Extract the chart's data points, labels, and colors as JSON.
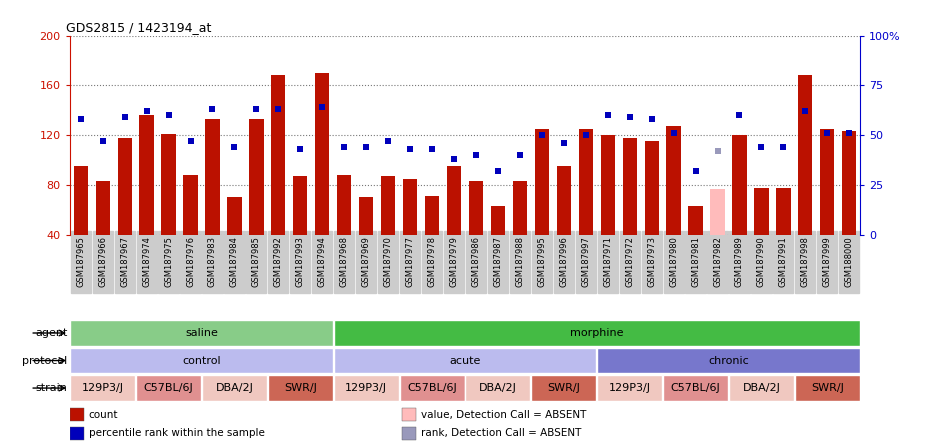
{
  "title": "GDS2815 / 1423194_at",
  "samples": [
    "GSM187965",
    "GSM187966",
    "GSM187967",
    "GSM187974",
    "GSM187975",
    "GSM187976",
    "GSM187983",
    "GSM187984",
    "GSM187985",
    "GSM187992",
    "GSM187993",
    "GSM187994",
    "GSM187968",
    "GSM187969",
    "GSM187970",
    "GSM187977",
    "GSM187978",
    "GSM187979",
    "GSM187986",
    "GSM187987",
    "GSM187988",
    "GSM187995",
    "GSM187996",
    "GSM187997",
    "GSM187971",
    "GSM187972",
    "GSM187973",
    "GSM187980",
    "GSM187981",
    "GSM187982",
    "GSM187989",
    "GSM187990",
    "GSM187991",
    "GSM187998",
    "GSM187999",
    "GSM188000"
  ],
  "bar_values": [
    95,
    83,
    118,
    136,
    121,
    88,
    133,
    70,
    133,
    168,
    87,
    170,
    88,
    70,
    87,
    85,
    71,
    95,
    83,
    63,
    83,
    125,
    95,
    125,
    120,
    118,
    115,
    127,
    63,
    77,
    120,
    78,
    78,
    168,
    125,
    123
  ],
  "bar_absent": [
    false,
    false,
    false,
    false,
    false,
    false,
    false,
    false,
    false,
    false,
    false,
    false,
    false,
    false,
    false,
    false,
    false,
    false,
    false,
    false,
    false,
    false,
    false,
    false,
    false,
    false,
    false,
    false,
    false,
    true,
    false,
    false,
    false,
    false,
    false,
    false
  ],
  "dot_values_pct": [
    58,
    47,
    59,
    62,
    60,
    47,
    63,
    44,
    63,
    63,
    43,
    64,
    44,
    44,
    47,
    43,
    43,
    38,
    40,
    32,
    40,
    50,
    46,
    50,
    60,
    59,
    58,
    51,
    32,
    42,
    60,
    44,
    44,
    62,
    51,
    51
  ],
  "dot_absent": [
    false,
    false,
    false,
    false,
    false,
    false,
    false,
    false,
    false,
    false,
    false,
    false,
    false,
    false,
    false,
    false,
    false,
    false,
    false,
    false,
    false,
    false,
    false,
    false,
    false,
    false,
    false,
    false,
    false,
    true,
    false,
    false,
    false,
    false,
    false,
    false
  ],
  "bar_color": "#bb1100",
  "bar_absent_color": "#ffbbbb",
  "dot_color": "#0000bb",
  "dot_absent_color": "#9999bb",
  "ylim": [
    40,
    200
  ],
  "y2lim": [
    0,
    100
  ],
  "yticks": [
    40,
    80,
    120,
    160,
    200
  ],
  "y2ticks": [
    0,
    25,
    50,
    75,
    100
  ],
  "y2ticklabels": [
    "0",
    "25",
    "50",
    "75",
    "100%"
  ],
  "agent_groups": [
    {
      "label": "saline",
      "start": 0,
      "end": 12,
      "color": "#88cc88"
    },
    {
      "label": "morphine",
      "start": 12,
      "end": 36,
      "color": "#44bb44"
    }
  ],
  "protocol_groups": [
    {
      "label": "control",
      "start": 0,
      "end": 12,
      "color": "#bbbbee"
    },
    {
      "label": "acute",
      "start": 12,
      "end": 24,
      "color": "#bbbbee"
    },
    {
      "label": "chronic",
      "start": 24,
      "end": 36,
      "color": "#7777cc"
    }
  ],
  "strain_groups": [
    {
      "label": "129P3/J",
      "start": 0,
      "end": 3,
      "color": "#f0c8c0"
    },
    {
      "label": "C57BL/6J",
      "start": 3,
      "end": 6,
      "color": "#e09090"
    },
    {
      "label": "DBA/2J",
      "start": 6,
      "end": 9,
      "color": "#f0c8c0"
    },
    {
      "label": "SWR/J",
      "start": 9,
      "end": 12,
      "color": "#cc6655"
    },
    {
      "label": "129P3/J",
      "start": 12,
      "end": 15,
      "color": "#f0c8c0"
    },
    {
      "label": "C57BL/6J",
      "start": 15,
      "end": 18,
      "color": "#e09090"
    },
    {
      "label": "DBA/2J",
      "start": 18,
      "end": 21,
      "color": "#f0c8c0"
    },
    {
      "label": "SWR/J",
      "start": 21,
      "end": 24,
      "color": "#cc6655"
    },
    {
      "label": "129P3/J",
      "start": 24,
      "end": 27,
      "color": "#f0c8c0"
    },
    {
      "label": "C57BL/6J",
      "start": 27,
      "end": 30,
      "color": "#e09090"
    },
    {
      "label": "DBA/2J",
      "start": 30,
      "end": 33,
      "color": "#f0c8c0"
    },
    {
      "label": "SWR/J",
      "start": 33,
      "end": 36,
      "color": "#cc6655"
    }
  ],
  "background_color": "#ffffff",
  "tick_bg_color": "#cccccc"
}
